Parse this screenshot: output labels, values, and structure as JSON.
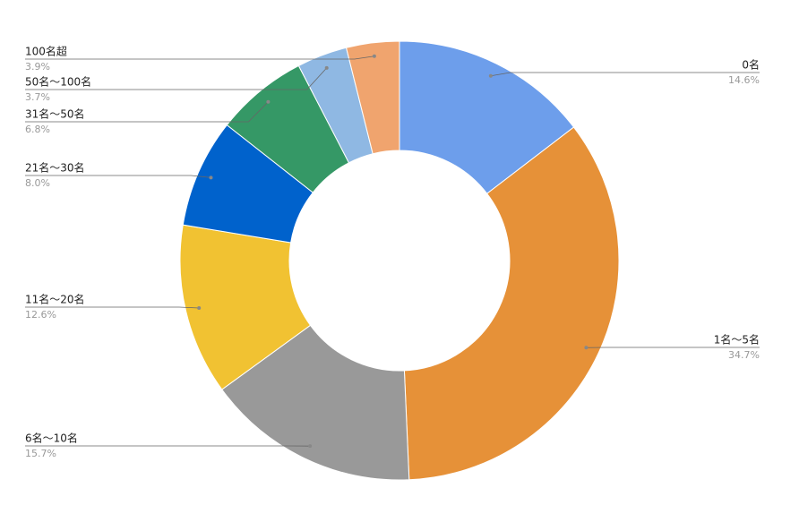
{
  "chart_data": {
    "type": "donut",
    "categories": [
      "0名",
      "1名～5名",
      "6名～10名",
      "11名～20名",
      "21名～30名",
      "31名～50名",
      "50名～100名",
      "100名超"
    ],
    "values": [
      14.6,
      34.7,
      15.7,
      12.6,
      8.0,
      6.8,
      3.7,
      3.9
    ],
    "value_labels": [
      "14.6%",
      "34.7%",
      "15.7%",
      "12.6%",
      "8.0%",
      "6.8%",
      "3.7%",
      "3.9%"
    ],
    "colors": [
      "#6d9eeb",
      "#e69138",
      "#999999",
      "#f1c232",
      "#0062cc",
      "#359866",
      "#8fb8e3",
      "#f0a46e"
    ]
  }
}
